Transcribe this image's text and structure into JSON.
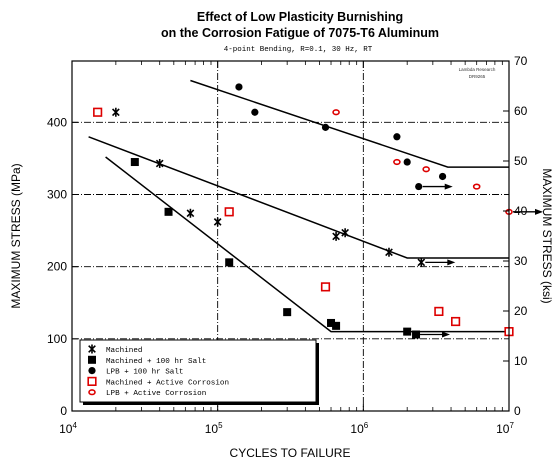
{
  "chart_data": {
    "type": "scatter",
    "title": "Effect of Low Plasticity Burnishing",
    "title_line2": "on the Corrosion Fatigue of 7075-T6 Aluminum",
    "subtitle": "4-point Bending, R=0.1, 30 Hz, RT",
    "stamp_line1": "Lambda Research",
    "stamp_line2": "DR9265",
    "xlabel": "CYCLES TO FAILURE",
    "ylabel": "MAXIMUM STRESS (MPa)",
    "y2label": "MAXIMUM STRESS (ksi)",
    "xscale": "log",
    "xlim": [
      10000,
      10000000
    ],
    "ylim": [
      0,
      485
    ],
    "y2lim": [
      0,
      70
    ],
    "xticks": [
      "10^4",
      "10^5",
      "10^6",
      "10^7"
    ],
    "yticks": [
      "0",
      "100",
      "200",
      "300",
      "400"
    ],
    "y2ticks": [
      "0",
      "10",
      "20",
      "30",
      "40",
      "50",
      "60",
      "70"
    ],
    "grid": "dash-dot horizontal and vertical",
    "legend_position": "bottom-left",
    "series": [
      {
        "name": "Machined",
        "marker": "asterisk",
        "color": "#000000",
        "points": [
          [
            20000,
            414
          ],
          [
            40000,
            343
          ],
          [
            65000,
            274
          ],
          [
            100000,
            262
          ],
          [
            650000,
            242
          ],
          [
            750000,
            247
          ],
          [
            1500000,
            220
          ],
          [
            2500000,
            206
          ]
        ],
        "runouts": [
          [
            2500000,
            206
          ]
        ]
      },
      {
        "name": "Machined + 100 hr Salt",
        "marker": "filled-square",
        "color": "#000000",
        "points": [
          [
            27000,
            345
          ],
          [
            46000,
            276
          ],
          [
            120000,
            206
          ],
          [
            300000,
            137
          ],
          [
            600000,
            122
          ],
          [
            650000,
            118
          ],
          [
            2000000,
            110
          ],
          [
            2300000,
            106
          ]
        ],
        "runouts": [
          [
            2300000,
            106
          ]
        ]
      },
      {
        "name": "LPB + 100 hr Salt",
        "marker": "filled-circle",
        "color": "#000000",
        "points": [
          [
            140000,
            449
          ],
          [
            180000,
            414
          ],
          [
            550000,
            393
          ],
          [
            1700000,
            380
          ],
          [
            2000000,
            345
          ],
          [
            2400000,
            311
          ],
          [
            3500000,
            325
          ]
        ],
        "runouts": [
          [
            2400000,
            311
          ]
        ]
      },
      {
        "name": "Machined + Active Corrosion",
        "marker": "open-square",
        "color": "#dd0000",
        "points": [
          [
            15000,
            414
          ],
          [
            120000,
            276
          ],
          [
            550000,
            172
          ],
          [
            3300000,
            138
          ],
          [
            4300000,
            124
          ],
          [
            10000000,
            110
          ]
        ],
        "runouts": []
      },
      {
        "name": "LPB + Active Corrosion",
        "marker": "open-circle",
        "color": "#dd0000",
        "points": [
          [
            650000,
            414
          ],
          [
            1700000,
            345
          ],
          [
            2700000,
            335
          ],
          [
            6000000,
            311
          ],
          [
            10000000,
            276
          ]
        ],
        "runouts": [
          [
            10000000,
            276
          ]
        ]
      }
    ],
    "trend_lines": [
      {
        "series": "LPB + 100 hr Salt",
        "points": [
          [
            65000,
            458
          ],
          [
            3800000,
            338
          ],
          [
            10000000,
            338
          ]
        ]
      },
      {
        "series": "Machined",
        "points": [
          [
            13000,
            380
          ],
          [
            2000000,
            212
          ],
          [
            10000000,
            212
          ]
        ]
      },
      {
        "series": "Machined + 100 hr Salt",
        "points": [
          [
            17000,
            352
          ],
          [
            600000,
            110
          ],
          [
            10000000,
            110
          ]
        ]
      }
    ]
  }
}
